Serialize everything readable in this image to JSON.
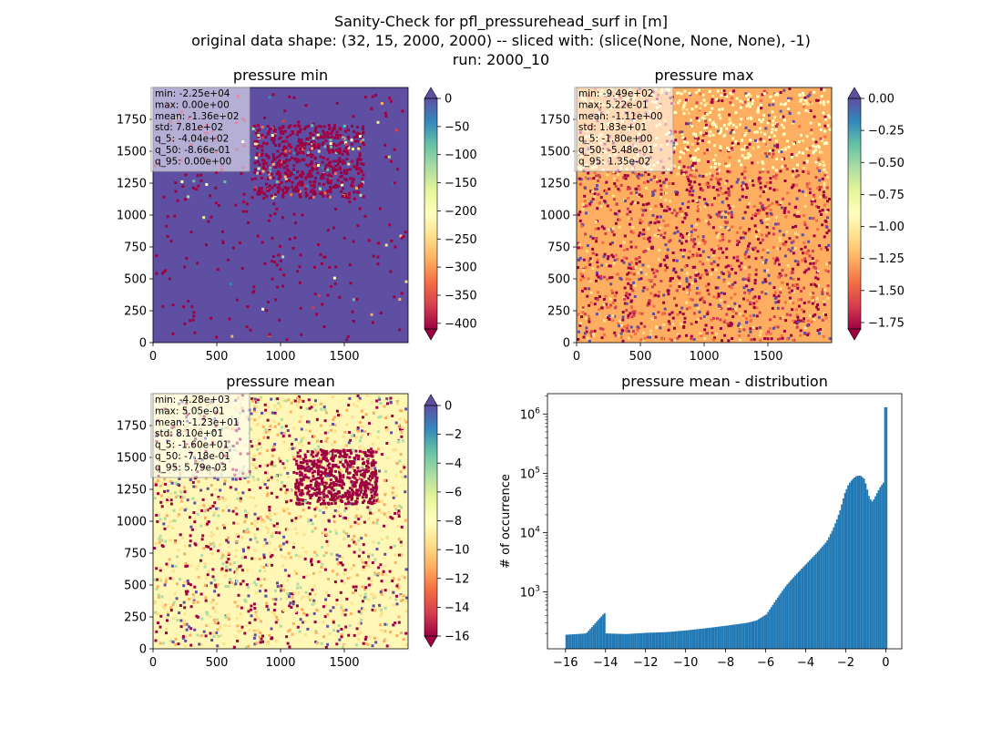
{
  "figure": {
    "title_lines": [
      "Sanity-Check for pfl_pressurehead_surf in [m]",
      "original data shape: (32, 15, 2000, 2000) -- sliced with: (slice(None, None, None), -1)",
      "run: 2000_10"
    ]
  },
  "panels": [
    {
      "key": "min",
      "title": "pressure min",
      "colorbar": {
        "ticks": [
          0,
          -50,
          -100,
          -150,
          -200,
          -250,
          -300,
          -350,
          -400
        ],
        "range": [
          -410,
          0
        ]
      },
      "stats": [
        "min: -2.25e+04",
        "max: 0.00e+00",
        "mean: -1.36e+02",
        "std: 7.81e+02",
        "q_5: -4.04e+02",
        "q_50: -8.66e-01",
        "q_95: 0.00e+00"
      ]
    },
    {
      "key": "max",
      "title": "pressure max",
      "colorbar": {
        "ticks": [
          0.0,
          -0.25,
          -0.5,
          -0.75,
          -1.0,
          -1.25,
          -1.5,
          -1.75
        ],
        "tick_labels": [
          "0.00",
          "−0.25",
          "−0.50",
          "−0.75",
          "−1.00",
          "−1.25",
          "−1.50",
          "−1.75"
        ],
        "range": [
          -1.8,
          0.0
        ]
      },
      "stats": [
        "min: -9.49e+02",
        "max: 5.22e-01",
        "mean: -1.11e+00",
        "std: 1.83e+01",
        "q_5: -1.80e+00",
        "q_50: -5.48e-01",
        "q_95: 1.35e-02"
      ]
    },
    {
      "key": "mean",
      "title": "pressure mean",
      "colorbar": {
        "ticks": [
          0,
          -2,
          -4,
          -6,
          -8,
          -10,
          -12,
          -14,
          -16
        ],
        "range": [
          -16,
          0
        ]
      },
      "stats": [
        "min: -4.28e+03",
        "max: 5.05e-01",
        "mean: -1.23e+01",
        "std: 8.10e+01",
        "q_5: -1.60e+01",
        "q_50: -7.18e-01",
        "q_95: 5.79e-03"
      ]
    }
  ],
  "map_axes": {
    "xticks": [
      0,
      500,
      1000,
      1500
    ],
    "yticks": [
      0,
      250,
      500,
      750,
      1000,
      1250,
      1500,
      1750
    ],
    "range": [
      0,
      2000
    ]
  },
  "chart_data": {
    "type": "bar",
    "title": "pressure mean - distribution",
    "xlabel": "",
    "ylabel": "# of occurrence",
    "x_ticks": [
      -16,
      -14,
      -12,
      -10,
      -8,
      -6,
      -4,
      -2,
      0
    ],
    "xlim": [
      -16.9,
      0.8
    ],
    "yscale": "log",
    "ylim": [
      110,
      2200000
    ],
    "y_tick_labels": [
      "10^3",
      "10^4",
      "10^5",
      "10^6"
    ],
    "bar_color": "#1f77b4",
    "bins": [
      [
        -16.0,
        190
      ],
      [
        -15.0,
        200
      ],
      [
        -14.1,
        440
      ],
      [
        -14.0,
        200
      ],
      [
        -13.0,
        195
      ],
      [
        -12.0,
        205
      ],
      [
        -11.0,
        210
      ],
      [
        -10.0,
        225
      ],
      [
        -9.0,
        245
      ],
      [
        -8.0,
        270
      ],
      [
        -7.0,
        300
      ],
      [
        -6.5,
        330
      ],
      [
        -6.0,
        420
      ],
      [
        -5.5,
        750
      ],
      [
        -5.0,
        1300
      ],
      [
        -4.5,
        2000
      ],
      [
        -4.0,
        3000
      ],
      [
        -3.5,
        4500
      ],
      [
        -3.0,
        7000
      ],
      [
        -2.7,
        11000
      ],
      [
        -2.5,
        16000
      ],
      [
        -2.3,
        25000
      ],
      [
        -2.1,
        45000
      ],
      [
        -1.9,
        65000
      ],
      [
        -1.7,
        80000
      ],
      [
        -1.5,
        90000
      ],
      [
        -1.3,
        92000
      ],
      [
        -1.1,
        80000
      ],
      [
        -1.0,
        60000
      ],
      [
        -0.85,
        38000
      ],
      [
        -0.7,
        33000
      ],
      [
        -0.5,
        45000
      ],
      [
        -0.3,
        60000
      ],
      [
        -0.15,
        70000
      ],
      [
        -0.05,
        1300000
      ],
      [
        0.0,
        1300000
      ]
    ]
  }
}
